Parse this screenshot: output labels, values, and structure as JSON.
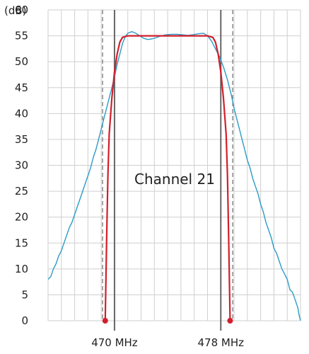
{
  "chart_data": {
    "type": "line",
    "ylabel": "(dB)",
    "xlabel": "",
    "y_ticks": [
      0,
      5,
      10,
      15,
      20,
      25,
      30,
      35,
      40,
      45,
      50,
      55,
      60
    ],
    "ylim": [
      0,
      60
    ],
    "xlim": [
      465,
      484
    ],
    "x_tick_labels": [
      {
        "x": 470,
        "label": "470 MHz"
      },
      {
        "x": 478,
        "label": "478 MHz"
      }
    ],
    "grid": true,
    "annotation": "Channel 21",
    "channel_edges": [
      470,
      478
    ],
    "dashed_markers": [
      469.1,
      478.9
    ],
    "series": [
      {
        "color": "#2b9cc5",
        "points": [
          [
            465.0,
            8.0
          ],
          [
            465.2,
            8.5
          ],
          [
            465.4,
            10.0
          ],
          [
            465.6,
            11.0
          ],
          [
            465.8,
            12.5
          ],
          [
            466.0,
            13.5
          ],
          [
            466.2,
            15.0
          ],
          [
            466.4,
            16.5
          ],
          [
            466.6,
            18.0
          ],
          [
            466.8,
            19.0
          ],
          [
            467.0,
            20.5
          ],
          [
            467.2,
            22.0
          ],
          [
            467.4,
            23.5
          ],
          [
            467.6,
            25.0
          ],
          [
            467.8,
            26.5
          ],
          [
            468.0,
            28.0
          ],
          [
            468.2,
            29.5
          ],
          [
            468.4,
            31.5
          ],
          [
            468.6,
            33.0
          ],
          [
            468.8,
            35.0
          ],
          [
            469.0,
            37.0
          ],
          [
            469.2,
            39.0
          ],
          [
            469.4,
            41.0
          ],
          [
            469.6,
            43.0
          ],
          [
            469.8,
            45.0
          ],
          [
            470.0,
            47.0
          ],
          [
            470.2,
            49.5
          ],
          [
            470.4,
            51.5
          ],
          [
            470.6,
            53.5
          ],
          [
            470.8,
            54.8
          ],
          [
            471.0,
            55.5
          ],
          [
            471.3,
            55.8
          ],
          [
            471.6,
            55.5
          ],
          [
            471.9,
            55.0
          ],
          [
            472.2,
            54.5
          ],
          [
            472.5,
            54.3
          ],
          [
            472.8,
            54.4
          ],
          [
            473.1,
            54.6
          ],
          [
            473.5,
            55.0
          ],
          [
            473.9,
            55.2
          ],
          [
            474.3,
            55.3
          ],
          [
            474.7,
            55.3
          ],
          [
            475.1,
            55.2
          ],
          [
            475.5,
            55.1
          ],
          [
            475.9,
            55.2
          ],
          [
            476.3,
            55.4
          ],
          [
            476.7,
            55.5
          ],
          [
            477.0,
            55.0
          ],
          [
            477.3,
            54.0
          ],
          [
            477.6,
            52.5
          ],
          [
            477.9,
            51.0
          ],
          [
            478.2,
            49.0
          ],
          [
            478.5,
            46.5
          ],
          [
            478.8,
            43.5
          ],
          [
            479.0,
            41.0
          ],
          [
            479.2,
            39.0
          ],
          [
            479.4,
            37.0
          ],
          [
            479.6,
            35.0
          ],
          [
            479.8,
            33.0
          ],
          [
            480.0,
            31.0
          ],
          [
            480.2,
            29.5
          ],
          [
            480.4,
            27.5
          ],
          [
            480.6,
            26.0
          ],
          [
            480.8,
            24.5
          ],
          [
            481.0,
            22.5
          ],
          [
            481.2,
            21.0
          ],
          [
            481.4,
            19.0
          ],
          [
            481.6,
            17.5
          ],
          [
            481.8,
            16.0
          ],
          [
            482.0,
            14.0
          ],
          [
            482.2,
            13.0
          ],
          [
            482.4,
            11.5
          ],
          [
            482.6,
            10.0
          ],
          [
            482.8,
            9.0
          ],
          [
            483.0,
            8.0
          ],
          [
            483.2,
            6.0
          ],
          [
            483.4,
            5.5
          ],
          [
            483.6,
            4.0
          ],
          [
            483.8,
            2.5
          ],
          [
            483.9,
            1.0
          ],
          [
            484.0,
            0.0
          ]
        ]
      },
      {
        "color": "#d21f2b",
        "points": [
          [
            469.3,
            0.0
          ],
          [
            469.4,
            15.0
          ],
          [
            469.5,
            28.0
          ],
          [
            469.6,
            36.0
          ],
          [
            469.8,
            43.0
          ],
          [
            470.0,
            48.0
          ],
          [
            470.2,
            51.5
          ],
          [
            470.4,
            53.8
          ],
          [
            470.6,
            54.7
          ],
          [
            471.0,
            55.0
          ],
          [
            472.0,
            55.0
          ],
          [
            473.0,
            55.0
          ],
          [
            474.0,
            55.0
          ],
          [
            475.0,
            55.0
          ],
          [
            476.0,
            55.0
          ],
          [
            477.0,
            55.0
          ],
          [
            477.4,
            54.7
          ],
          [
            477.6,
            53.8
          ],
          [
            477.8,
            51.5
          ],
          [
            478.0,
            48.0
          ],
          [
            478.2,
            43.0
          ],
          [
            478.4,
            36.0
          ],
          [
            478.5,
            28.0
          ],
          [
            478.6,
            15.0
          ],
          [
            478.7,
            0.0
          ]
        ],
        "end_markers": [
          [
            469.3,
            0.0
          ],
          [
            478.7,
            0.0
          ]
        ]
      }
    ]
  }
}
